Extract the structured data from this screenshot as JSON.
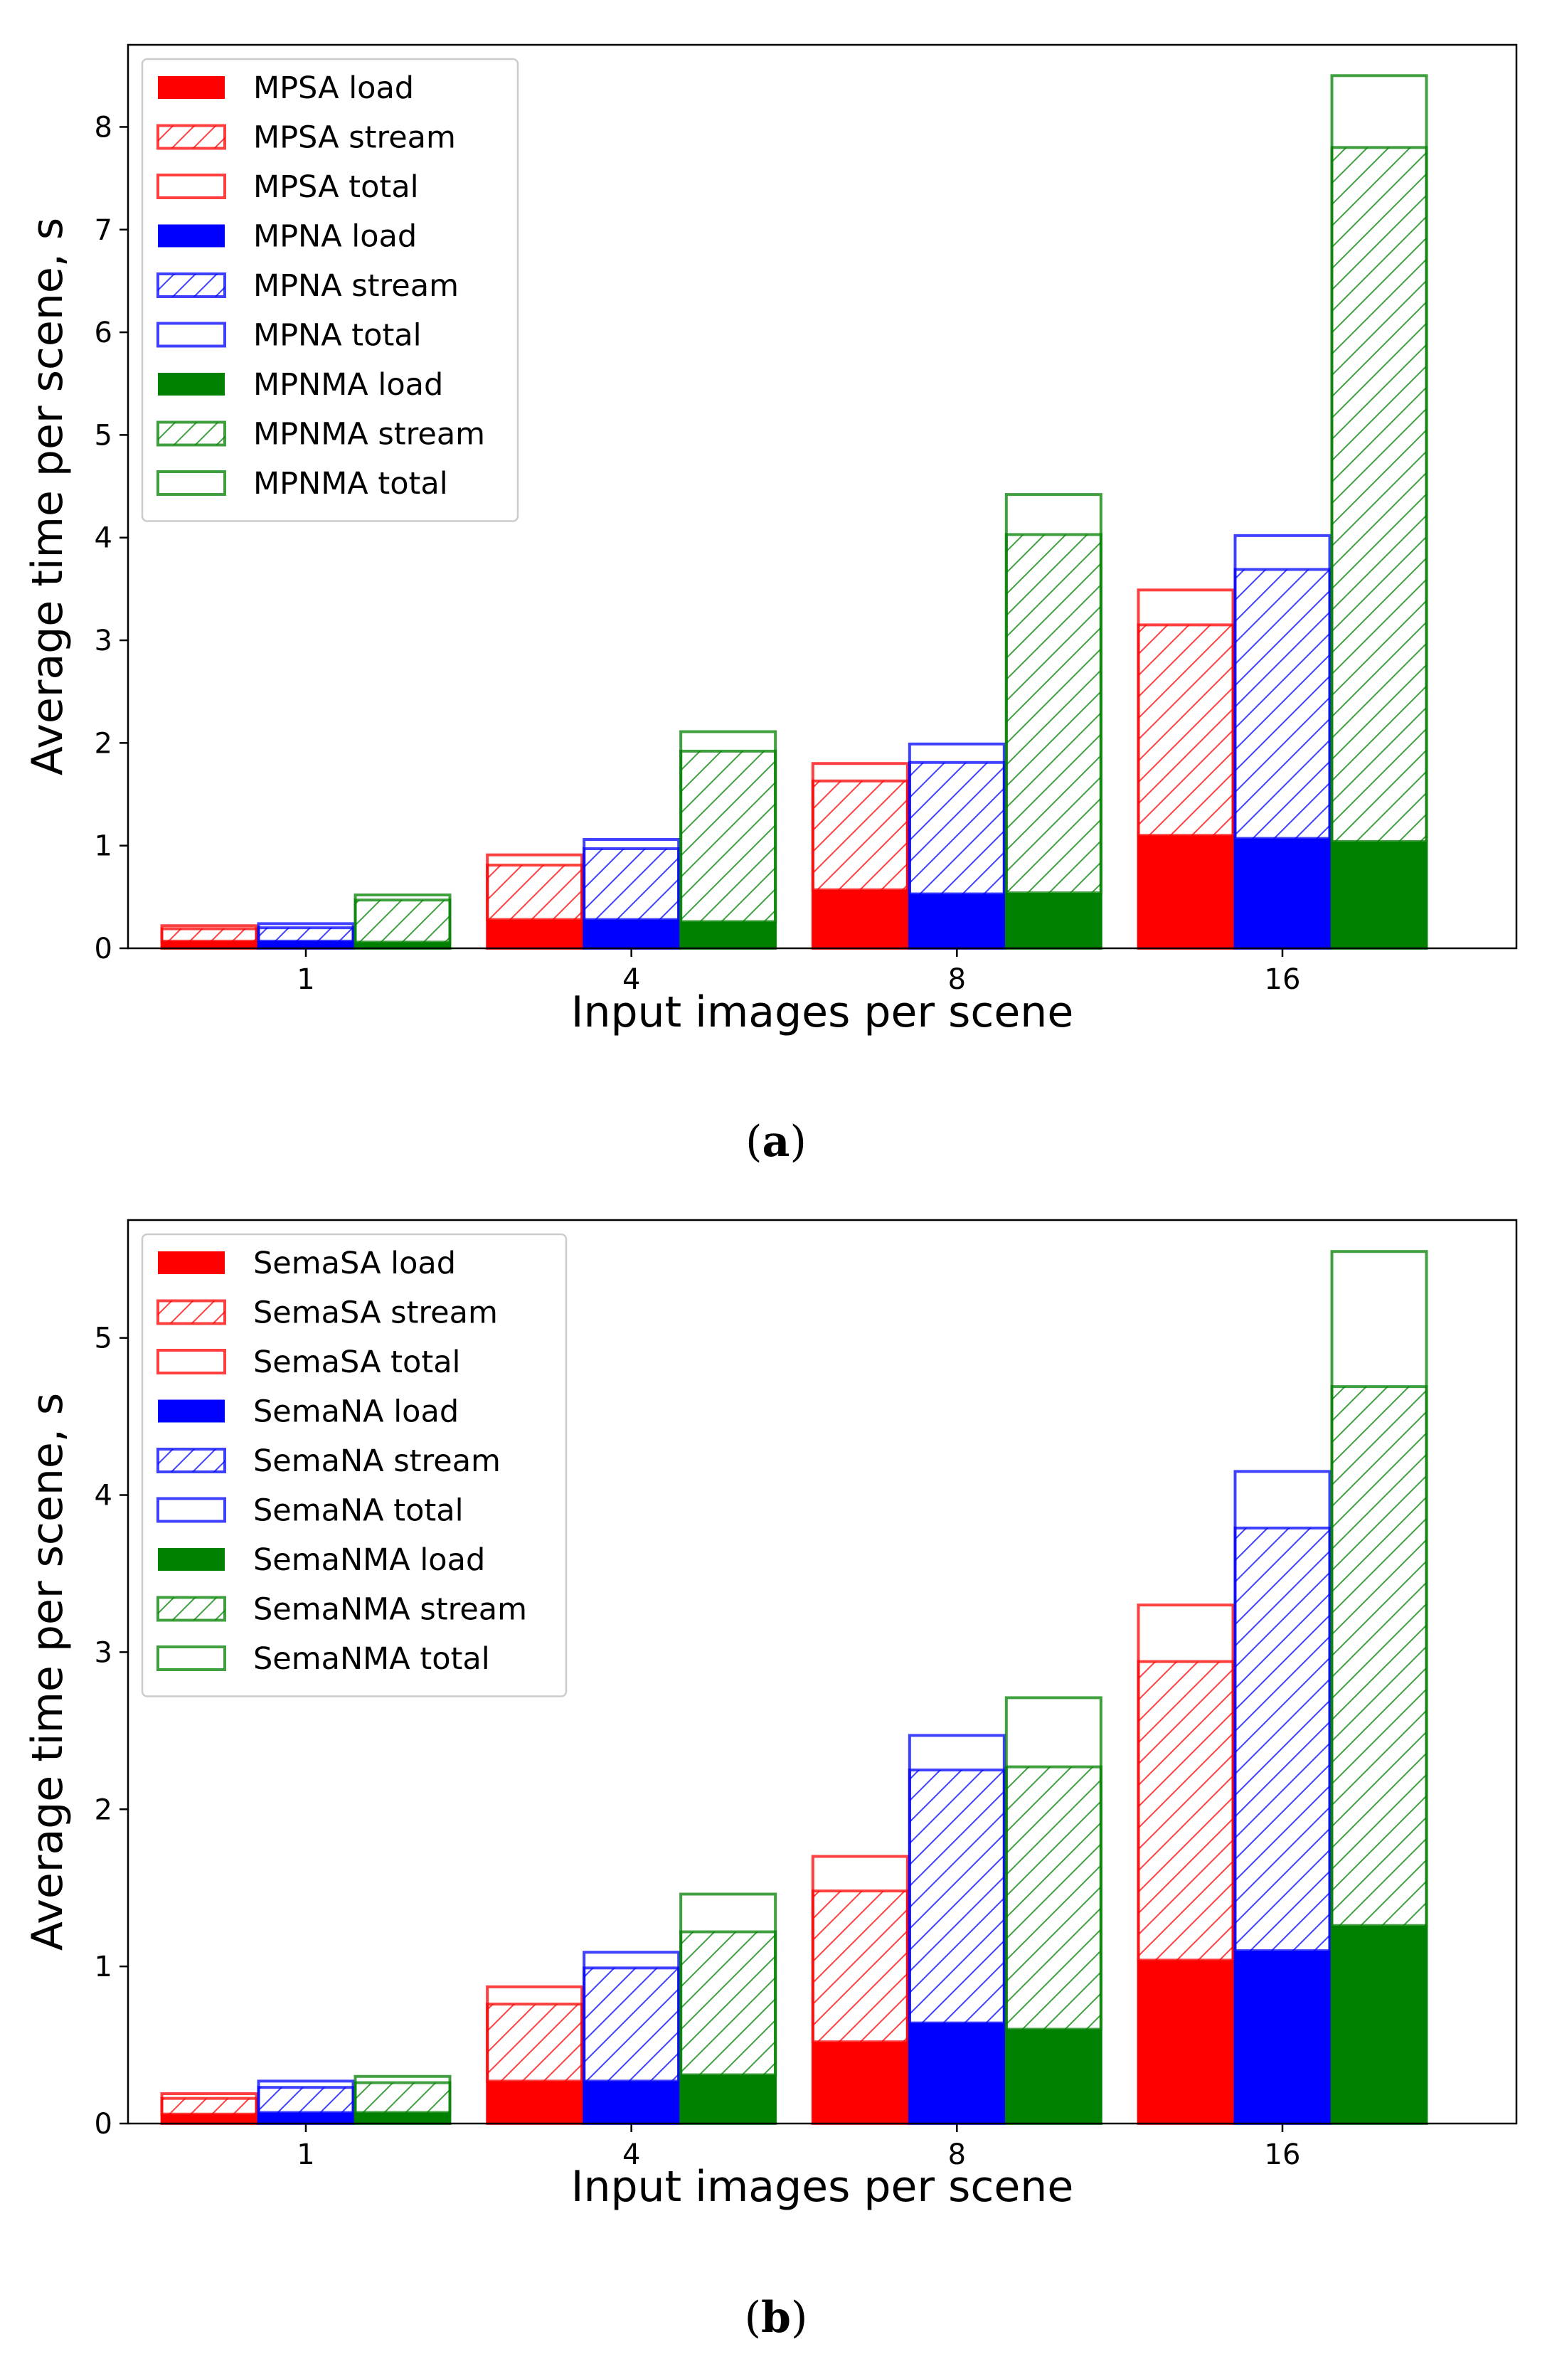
{
  "colors": {
    "red": "#ff0000",
    "blue": "#0000ff",
    "green": "#008000"
  },
  "chart_data": [
    {
      "type": "bar",
      "panel": "a",
      "caption_letter": "a",
      "xlabel": "Input images per scene",
      "ylabel": "Average time per scene, s",
      "categories": [
        "1",
        "4",
        "8",
        "16"
      ],
      "ylim": [
        0,
        8.8
      ],
      "yticks": [
        "0",
        "1",
        "2",
        "3",
        "4",
        "5",
        "6",
        "7",
        "8"
      ],
      "series": [
        {
          "name": "MPSA",
          "color": "red",
          "load": [
            0.07,
            0.28,
            0.57,
            1.1
          ],
          "stream": [
            0.12,
            0.53,
            1.06,
            2.05
          ],
          "total": [
            0.22,
            0.91,
            1.8,
            3.49
          ]
        },
        {
          "name": "MPNA",
          "color": "blue",
          "load": [
            0.07,
            0.28,
            0.53,
            1.07
          ],
          "stream": [
            0.13,
            0.69,
            1.28,
            2.62
          ],
          "total": [
            0.24,
            1.06,
            1.99,
            4.02
          ]
        },
        {
          "name": "MPNMA",
          "color": "green",
          "load": [
            0.06,
            0.26,
            0.54,
            1.04
          ],
          "stream": [
            0.41,
            1.66,
            3.49,
            6.76
          ],
          "total": [
            0.52,
            2.11,
            4.42,
            8.5
          ]
        }
      ],
      "legend": [
        {
          "label": "MPSA load",
          "color": "red",
          "style": "solid"
        },
        {
          "label": "MPSA stream",
          "color": "red",
          "style": "hatch"
        },
        {
          "label": "MPSA total",
          "color": "red",
          "style": "outline"
        },
        {
          "label": "MPNA load",
          "color": "blue",
          "style": "solid"
        },
        {
          "label": "MPNA stream",
          "color": "blue",
          "style": "hatch"
        },
        {
          "label": "MPNA total",
          "color": "blue",
          "style": "outline"
        },
        {
          "label": "MPNMA load",
          "color": "green",
          "style": "solid"
        },
        {
          "label": "MPNMA stream",
          "color": "green",
          "style": "hatch"
        },
        {
          "label": "MPNMA total",
          "color": "green",
          "style": "outline"
        }
      ],
      "legend_position": "upper-left"
    },
    {
      "type": "bar",
      "panel": "b",
      "caption_letter": "b",
      "xlabel": "Input images per scene",
      "ylabel": "Average time per scene, s",
      "categories": [
        "1",
        "4",
        "8",
        "16"
      ],
      "ylim": [
        0,
        5.75
      ],
      "yticks": [
        "0",
        "1",
        "2",
        "3",
        "4",
        "5"
      ],
      "series": [
        {
          "name": "SemaSA",
          "color": "red",
          "load": [
            0.06,
            0.27,
            0.52,
            1.04
          ],
          "stream": [
            0.1,
            0.49,
            0.96,
            1.9
          ],
          "total": [
            0.19,
            0.87,
            1.7,
            3.3
          ]
        },
        {
          "name": "SemaNA",
          "color": "blue",
          "load": [
            0.07,
            0.27,
            0.64,
            1.1
          ],
          "stream": [
            0.16,
            0.72,
            1.61,
            2.69
          ],
          "total": [
            0.27,
            1.09,
            2.47,
            4.15
          ]
        },
        {
          "name": "SemaNMA",
          "color": "green",
          "load": [
            0.07,
            0.31,
            0.6,
            1.26
          ],
          "stream": [
            0.19,
            0.91,
            1.67,
            3.43
          ],
          "total": [
            0.3,
            1.46,
            2.71,
            5.55
          ]
        }
      ],
      "legend": [
        {
          "label": "SemaSA load",
          "color": "red",
          "style": "solid"
        },
        {
          "label": "SemaSA stream",
          "color": "red",
          "style": "hatch"
        },
        {
          "label": "SemaSA total",
          "color": "red",
          "style": "outline"
        },
        {
          "label": "SemaNA load",
          "color": "blue",
          "style": "solid"
        },
        {
          "label": "SemaNA stream",
          "color": "blue",
          "style": "hatch"
        },
        {
          "label": "SemaNA total",
          "color": "blue",
          "style": "outline"
        },
        {
          "label": "SemaNMA load",
          "color": "green",
          "style": "solid"
        },
        {
          "label": "SemaNMA stream",
          "color": "green",
          "style": "hatch"
        },
        {
          "label": "SemaNMA total",
          "color": "green",
          "style": "outline"
        }
      ],
      "legend_position": "upper-left"
    }
  ]
}
